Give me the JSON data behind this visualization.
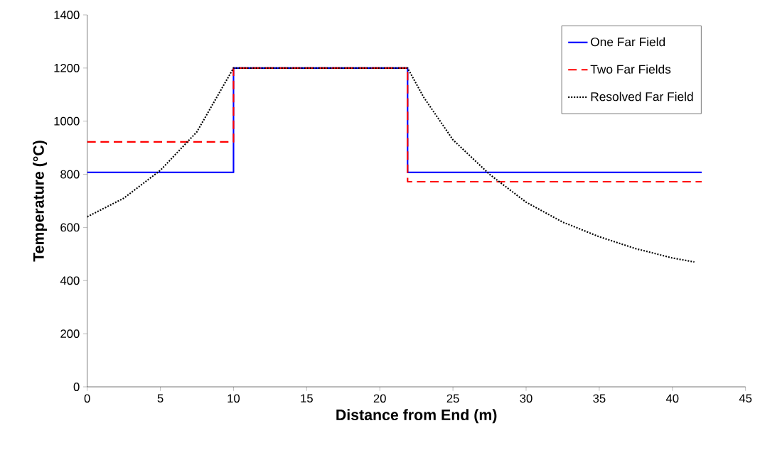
{
  "chart_data": {
    "type": "line",
    "xlabel": "Distance from End (m)",
    "ylabel": "Temperature (°C)",
    "xlim": [
      0,
      45
    ],
    "ylim": [
      0,
      1400
    ],
    "xticks": [
      0,
      5,
      10,
      15,
      20,
      25,
      30,
      35,
      40,
      45
    ],
    "yticks": [
      0,
      200,
      400,
      600,
      800,
      1000,
      1200,
      1400
    ],
    "grid": false,
    "legend": "top right",
    "marker": "none",
    "series": [
      {
        "name": "One Far Field",
        "color": "#0000ff",
        "line_style": "solid",
        "x": [
          0,
          10,
          10,
          21.9,
          21.9,
          42
        ],
        "values": [
          807,
          807,
          1200,
          1200,
          807,
          807
        ]
      },
      {
        "name": "Two Far Fields",
        "color": "#ff0000",
        "line_style": "dashed",
        "x": [
          0,
          10,
          10,
          21.9,
          21.9,
          42
        ],
        "values": [
          922,
          922,
          1200,
          1200,
          772,
          772
        ]
      },
      {
        "name": "Resolved Far Field",
        "color": "#000000",
        "line_style": "dotted",
        "x": [
          0,
          2.5,
          5,
          7.5,
          10,
          21.9,
          23,
          25,
          27.5,
          30,
          32.5,
          35,
          37.5,
          40,
          41.5
        ],
        "values": [
          640,
          710,
          815,
          960,
          1200,
          1200,
          1090,
          930,
          800,
          695,
          620,
          565,
          520,
          485,
          470
        ]
      }
    ]
  }
}
